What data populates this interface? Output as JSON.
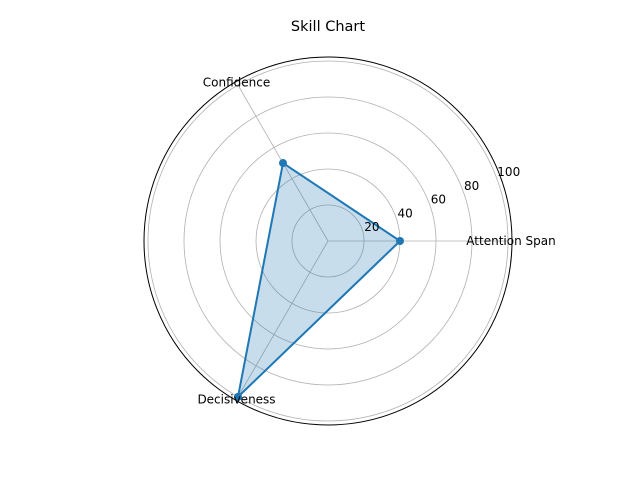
{
  "chart_data": {
    "type": "radar",
    "title": "Skill Chart",
    "categories": [
      "Attention Span",
      "Confidence",
      "Decisiveness"
    ],
    "series": [
      {
        "values": [
          40,
          50,
          100
        ],
        "color": "#1f77b4",
        "fill_opacity": 0.25
      }
    ],
    "radial_ticks": [
      20,
      40,
      60,
      80,
      100
    ],
    "rlim": [
      0,
      100
    ],
    "grid": true
  }
}
